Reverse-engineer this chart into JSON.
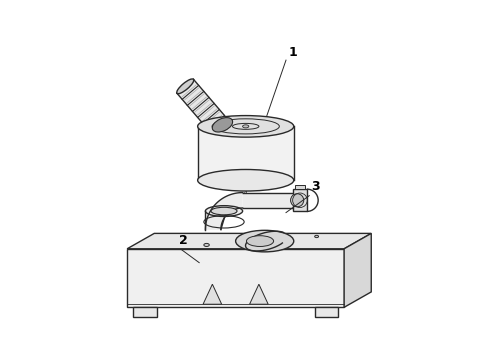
{
  "bg_color": "#ffffff",
  "lc": "#2a2a2a",
  "lw": 1.0,
  "fig_width": 4.9,
  "fig_height": 3.6,
  "dpi": 100,
  "label_fs": 9
}
